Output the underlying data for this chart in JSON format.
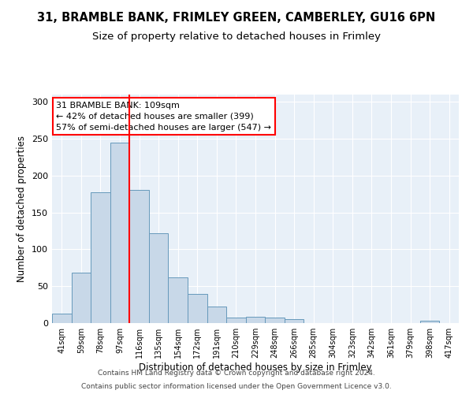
{
  "title1": "31, BRAMBLE BANK, FRIMLEY GREEN, CAMBERLEY, GU16 6PN",
  "title2": "Size of property relative to detached houses in Frimley",
  "xlabel": "Distribution of detached houses by size in Frimley",
  "ylabel": "Number of detached properties",
  "footer1": "Contains HM Land Registry data © Crown copyright and database right 2024.",
  "footer2": "Contains public sector information licensed under the Open Government Licence v3.0.",
  "bin_labels": [
    "41sqm",
    "59sqm",
    "78sqm",
    "97sqm",
    "116sqm",
    "135sqm",
    "154sqm",
    "172sqm",
    "191sqm",
    "210sqm",
    "229sqm",
    "248sqm",
    "266sqm",
    "285sqm",
    "304sqm",
    "323sqm",
    "342sqm",
    "361sqm",
    "379sqm",
    "398sqm",
    "417sqm"
  ],
  "bar_values": [
    13,
    68,
    177,
    245,
    181,
    122,
    62,
    40,
    22,
    7,
    9,
    7,
    5,
    0,
    0,
    0,
    0,
    0,
    0,
    3,
    0
  ],
  "bar_color": "#c8d8e8",
  "bar_edge_color": "#6699bb",
  "vline_x": 3.5,
  "annotation_line1": "31 BRAMBLE BANK: 109sqm",
  "annotation_line2": "← 42% of detached houses are smaller (399)",
  "annotation_line3": "57% of semi-detached houses are larger (547) →",
  "annotation_box_color": "white",
  "annotation_box_edge": "red",
  "vline_color": "red",
  "ylim": [
    0,
    310
  ],
  "yticks": [
    0,
    50,
    100,
    150,
    200,
    250,
    300
  ],
  "background_color": "#e8f0f8",
  "grid_color": "white",
  "title1_fontsize": 10.5,
  "title2_fontsize": 9.5,
  "xlabel_fontsize": 8.5,
  "ylabel_fontsize": 8.5,
  "footer_fontsize": 6.5,
  "annot_fontsize": 8
}
